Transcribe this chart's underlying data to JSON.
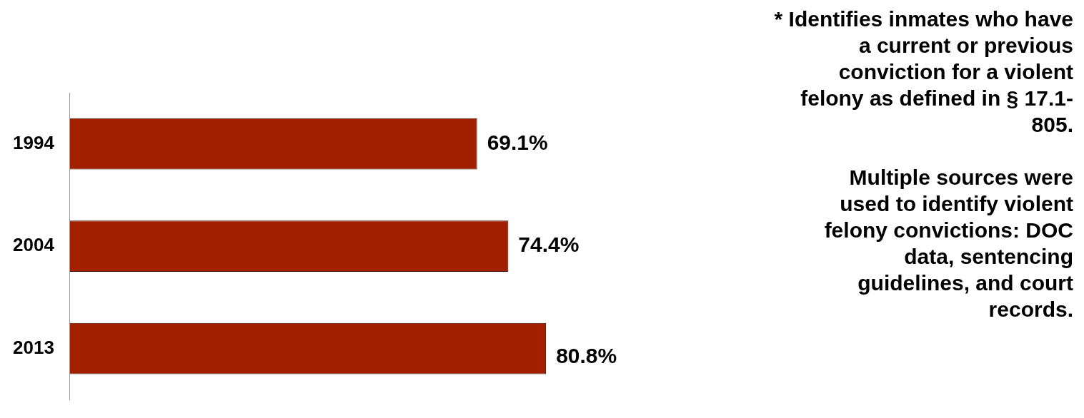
{
  "chart_data": {
    "type": "bar",
    "orientation": "horizontal",
    "categories": [
      "1994",
      "2004",
      "2013"
    ],
    "values": [
      69.1,
      74.4,
      80.8
    ],
    "value_labels": [
      "69.1%",
      "74.4%",
      "80.8%"
    ],
    "color": "#a21f00",
    "tick_labels": "y",
    "grid": false,
    "legend": false,
    "annotations": [
      "* Identifies inmates who have a current or previous conviction for a violent felony as defined in § 17.1-805.",
      "Multiple sources were used to identify violent felony convictions:  DOC data, sentencing guidelines, and court records."
    ]
  }
}
